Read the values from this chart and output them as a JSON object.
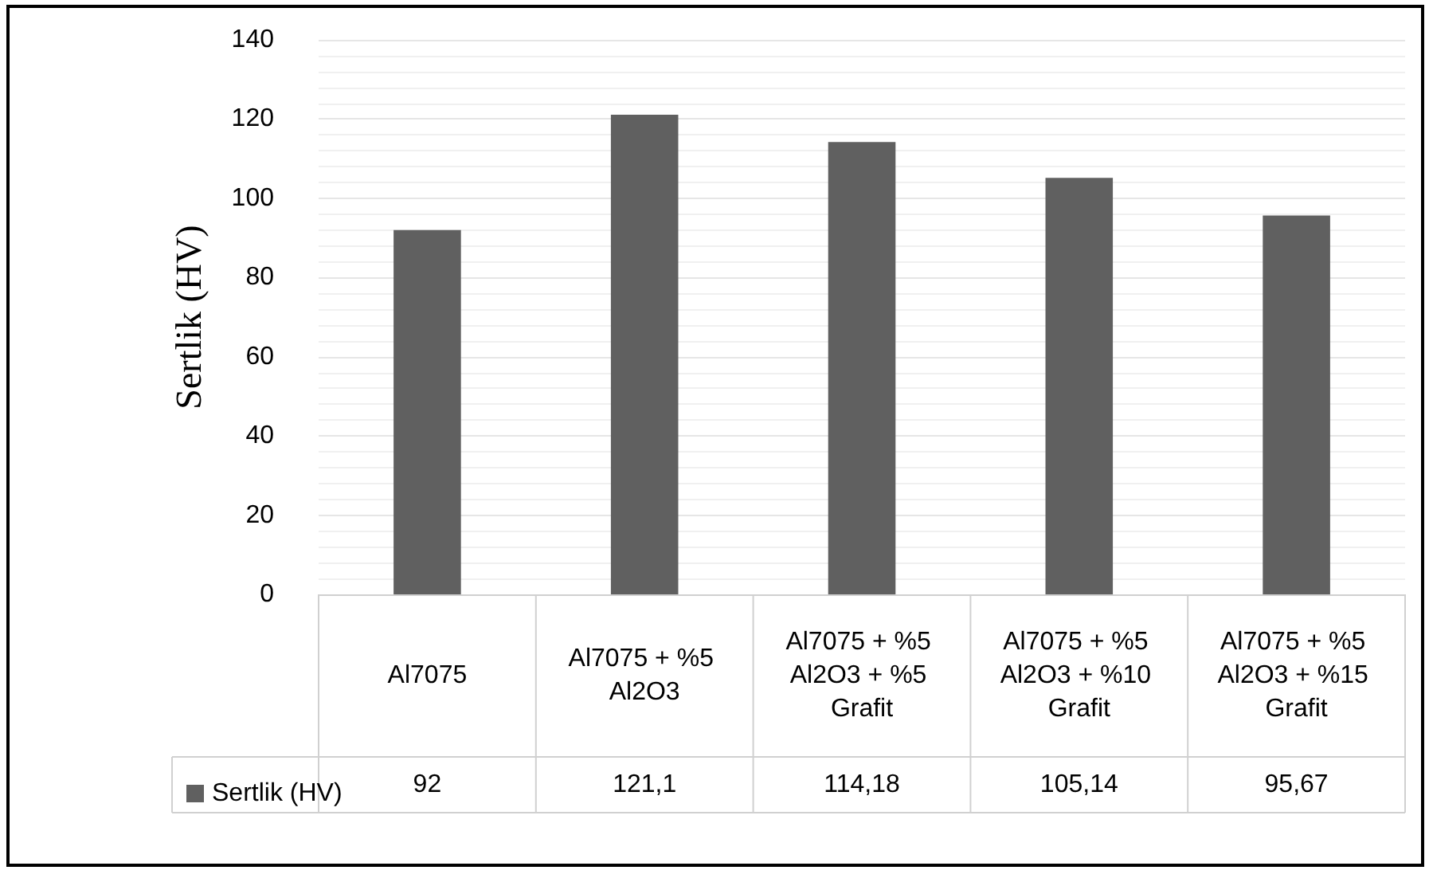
{
  "chart_data": {
    "type": "bar",
    "ylabel": "Sertlik (HV)",
    "categories": [
      "Al7075",
      "Al7075 + %5 Al2O3",
      "Al7075 + %5 Al2O3 + %5 Grafit",
      "Al7075 + %5 Al2O3 + %10 Grafit",
      "Al7075 + %5 Al2O3 + %15 Grafit"
    ],
    "series": [
      {
        "name": "Sertlik (HV)",
        "color": "#606060",
        "values": [
          92,
          121.1,
          114.18,
          105.14,
          95.67
        ],
        "value_labels": [
          "92",
          "121,1",
          "114,18",
          "105,14",
          "95,67"
        ]
      }
    ],
    "ylim": [
      0,
      140
    ],
    "yticks": [
      0,
      20,
      40,
      60,
      80,
      100,
      120,
      140
    ],
    "grid": true,
    "legend": "bottom left"
  }
}
